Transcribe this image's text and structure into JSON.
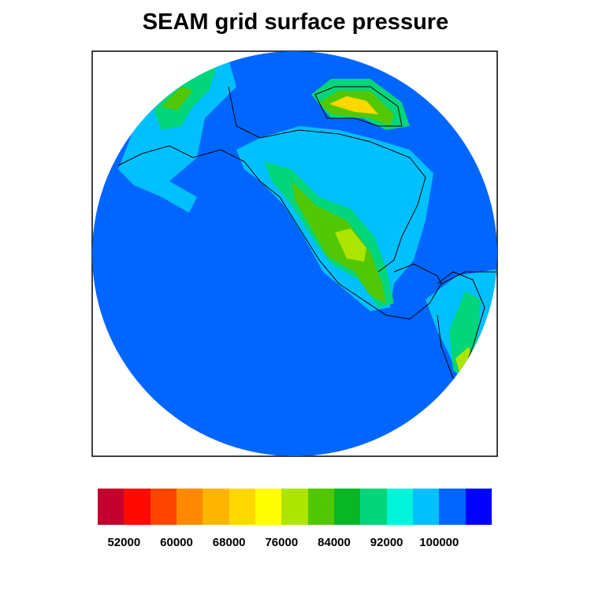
{
  "title": "SEAM grid surface pressure",
  "chart_data": {
    "type": "filled-contour-map",
    "projection": "orthographic",
    "title": "SEAM grid surface pressure",
    "contour_levels": [
      52000,
      56000,
      60000,
      64000,
      68000,
      72000,
      76000,
      80000,
      84000,
      88000,
      92000,
      96000,
      100000,
      104000
    ],
    "labelbar_labels": [
      "52000",
      "60000",
      "68000",
      "76000",
      "84000",
      "92000",
      "100000"
    ],
    "fill_colors": [
      "#C4002F",
      "#FF0A00",
      "#FF4500",
      "#FF8A00",
      "#FFB400",
      "#FFD800",
      "#FFFF00",
      "#ADE500",
      "#52C805",
      "#09B624",
      "#03D57A",
      "#00F5DA",
      "#00C0FF",
      "#0066FF",
      "#0000FF"
    ],
    "labelbar_placement": "bottom",
    "coastlines": true
  }
}
